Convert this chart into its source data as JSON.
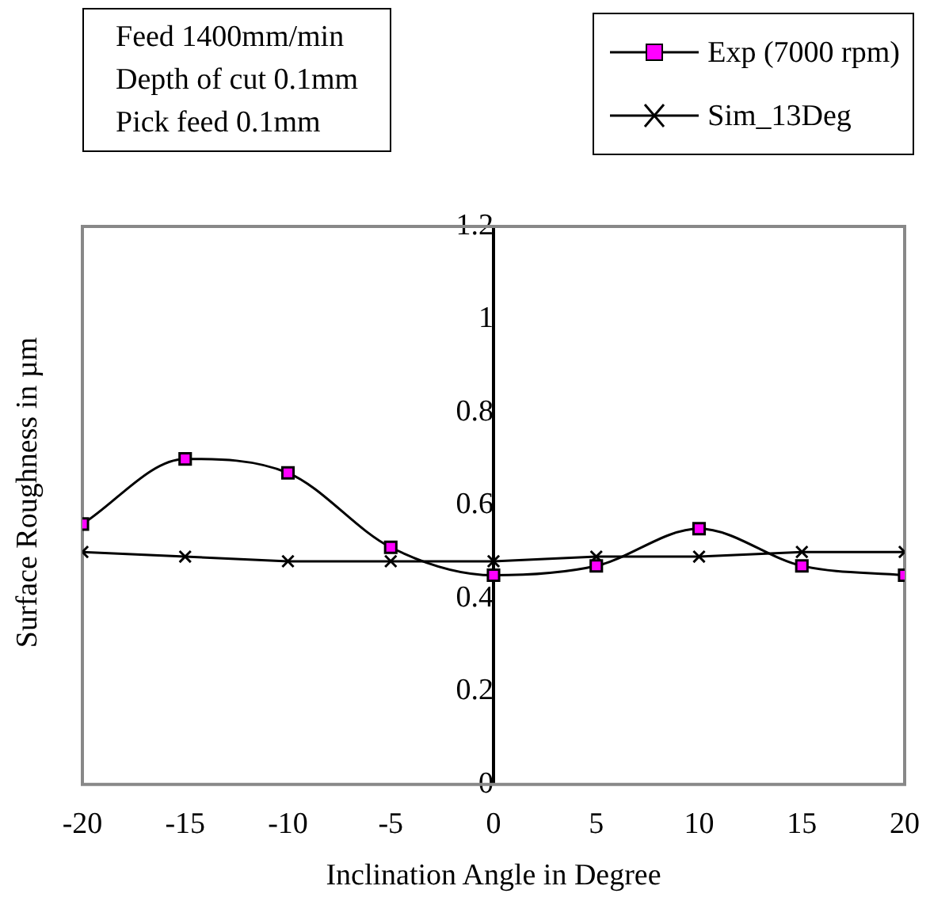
{
  "chart_data": {
    "type": "line",
    "xlabel": "Inclination Angle in Degree",
    "ylabel": "Surface Roughness in µm",
    "x": [
      -20,
      -15,
      -10,
      -5,
      0,
      5,
      10,
      15,
      20
    ],
    "series": [
      {
        "name": "Exp (7000 rpm)",
        "color": "#000000",
        "colors": [
          "#ff00ff",
          "#ff00ff",
          "#ff00ff",
          "#ff00ff",
          "#ff00ff",
          "#ff00ff",
          "#ff00ff",
          "#ff00ff",
          "#ff00ff"
        ],
        "marker": "square",
        "values": [
          0.56,
          0.7,
          0.67,
          0.51,
          0.45,
          0.47,
          0.55,
          0.47,
          0.45
        ]
      },
      {
        "name": "Sim_13Deg",
        "color": "#000000",
        "marker": "cross",
        "values": [
          0.5,
          0.49,
          0.48,
          0.48,
          0.48,
          0.49,
          0.49,
          0.5,
          0.5
        ]
      }
    ],
    "xlim": [
      -20,
      20
    ],
    "xticks": [
      -20,
      -15,
      -10,
      -5,
      0,
      5,
      10,
      15,
      20
    ],
    "ylim": [
      0,
      1.2
    ],
    "yticks": [
      0,
      0.2,
      0.4,
      0.6,
      0.8,
      1,
      1.2
    ],
    "grid": false,
    "legend": "top right",
    "annotations": [
      "Feed 1400mm/min",
      "Depth of cut 0.1mm",
      "Pick feed 0.1mm"
    ]
  }
}
